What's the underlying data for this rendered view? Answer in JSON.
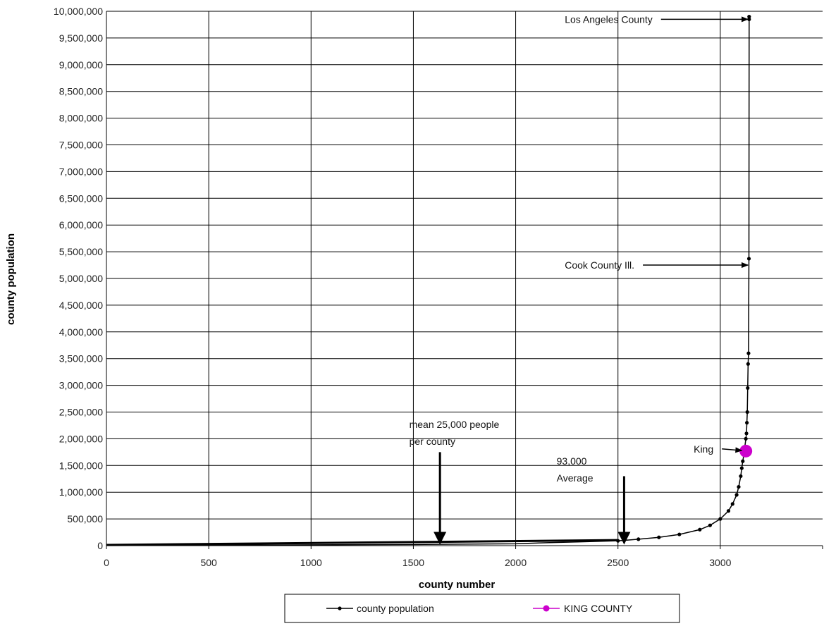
{
  "chart_data": {
    "type": "line",
    "title": "",
    "xlabel": "county number",
    "ylabel": "county population",
    "xlim": [
      0,
      3500
    ],
    "ylim": [
      0,
      10000000
    ],
    "x_ticks": [
      0,
      500,
      1000,
      1500,
      2000,
      2500,
      3000
    ],
    "x_tick_labels": [
      "0",
      "500",
      "1000",
      "1500",
      "2000",
      "2500",
      "3000"
    ],
    "y_ticks": [
      0,
      500000,
      1000000,
      1500000,
      2000000,
      2500000,
      3000000,
      3500000,
      4000000,
      4500000,
      5000000,
      5500000,
      6000000,
      6500000,
      7000000,
      7500000,
      8000000,
      8500000,
      9000000,
      9500000,
      10000000
    ],
    "y_tick_labels": [
      "0",
      "500,000",
      "1,000,000",
      "1,500,000",
      "2,000,000",
      "2,500,000",
      "3,000,000",
      "3,500,000",
      "4,000,000",
      "4,500,000",
      "5,000,000",
      "5,500,000",
      "6,000,000",
      "6,500,000",
      "7,000,000",
      "7,500,000",
      "8,000,000",
      "8,500,000",
      "9,000,000",
      "9,500,000",
      "10,000,000"
    ],
    "grid": true,
    "legend_position": "bottom",
    "series": [
      {
        "name": "county population",
        "color": "#000000",
        "marker": "dot",
        "x": [
          0,
          500,
          1000,
          1500,
          2000,
          2150,
          2300,
          2500,
          2600,
          2700,
          2800,
          2900,
          2950,
          3000,
          3040,
          3060,
          3080,
          3090,
          3100,
          3105,
          3110,
          3115,
          3120,
          3125,
          3128,
          3130,
          3132,
          3134,
          3136,
          3138,
          3140,
          3141,
          3141
        ],
        "y": [
          2000,
          8000,
          15000,
          22000,
          35000,
          55000,
          70000,
          90000,
          120000,
          155000,
          210000,
          300000,
          380000,
          500000,
          650000,
          780000,
          950000,
          1100000,
          1300000,
          1450000,
          1580000,
          1700000,
          1850000,
          2000000,
          2100000,
          2300000,
          2500000,
          2950000,
          3400000,
          3600000,
          5370000,
          9850000,
          9900000
        ]
      },
      {
        "name": "KING COUNTY",
        "color": "#cc00cc",
        "marker": "circle",
        "x": [
          3125
        ],
        "y": [
          1770000
        ]
      }
    ],
    "annotations": [
      {
        "text": "Los Angeles County",
        "x": 2240,
        "y": 9850000,
        "arrow_to": [
          3135,
          9850000
        ]
      },
      {
        "text": "Cook County Ill.",
        "x": 2240,
        "y": 5250000,
        "arrow_to": [
          3135,
          5250000
        ]
      },
      {
        "text": "King",
        "x": 2870,
        "y": 1810000,
        "arrow_to": [
          3105,
          1780000
        ]
      },
      {
        "lines": [
          "mean 25,000 people",
          "per county"
        ],
        "x": 1480,
        "y": 2200000,
        "arrow_from": [
          1630,
          1750000
        ],
        "arrow_to": [
          1630,
          20000
        ]
      },
      {
        "lines": [
          "93,000",
          "Average"
        ],
        "x": 2200,
        "y": 1520000,
        "arrow_from": [
          2530,
          1300000
        ],
        "arrow_to": [
          2530,
          20000
        ]
      }
    ]
  }
}
